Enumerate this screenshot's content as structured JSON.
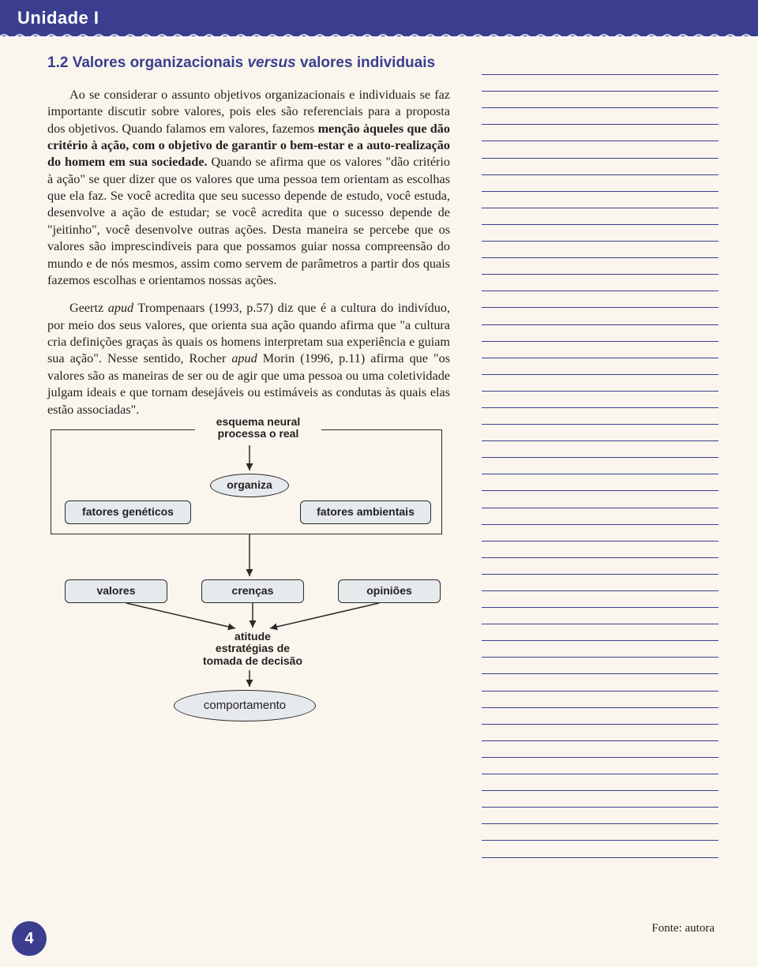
{
  "header": {
    "title": "Unidade I"
  },
  "heading": {
    "pre": "1.2 Valores organizacionais ",
    "versus": "versus",
    "post": " valores individuais"
  },
  "paragraphs": {
    "p1_a": "Ao se considerar o assunto objetivos organizacionais e individuais se faz importante discutir sobre valores, pois eles são referenciais para a proposta dos objetivos. Quando falamos em valores, fazemos ",
    "p1_bold": "menção àqueles que dão critério à ação, com o objetivo de garantir o bem-estar e a auto-realização do homem em sua sociedade.",
    "p1_b": " Quando se afirma que os valores \"dão critério à ação\" se quer dizer que os valores que uma pessoa tem orientam as escolhas que ela faz. Se você acredita que seu sucesso depende de estudo, você estuda, desenvolve a ação de estudar; se você acredita que o sucesso depende de \"jeitinho\", você desenvolve outras ações. Desta maneira se percebe que os valores são imprescindíveis para que possamos guiar nossa compreensão do mundo e de nós mesmos, assim como servem de parâmetros a partir dos quais fazemos escolhas e orientamos nossas ações.",
    "p2_a": "Geertz ",
    "p2_apud1": "apud",
    "p2_b": " Trompenaars (1993, p.57) diz que é a cultura do indivíduo, por meio dos seus valores, que orienta sua ação quando afirma que \"a cultura cria definições graças às quais os homens interpretam sua experiência e guiam sua ação\". Nesse sentido, Rocher ",
    "p2_apud2": "apud",
    "p2_c": " Morin (1996, p.11) afirma que \"os valores são as maneiras de ser ou de agir que uma pessoa ou uma coletividade julgam ideais e que tornam desejáveis ou estimáveis as condutas às quais elas estão associadas\"."
  },
  "diagram": {
    "caption": "esquema neural\nprocessa o real",
    "nodes": {
      "organiza": "organiza",
      "fat_gen": "fatores genéticos",
      "fat_amb": "fatores ambientais",
      "valores": "valores",
      "crencas": "crenças",
      "opinioes": "opiniões",
      "atitude": "atitude\nestratégias de\ntomada de decisão",
      "comportamento": "comportamento"
    },
    "arrow_color": "#2a2a2a"
  },
  "notes": {
    "line_count": 48,
    "line_color": "#3b3e8f"
  },
  "source": "Fonte: autora",
  "page_number": "4",
  "colors": {
    "brand": "#3b3e8f",
    "paper": "#faf6ed",
    "node_fill": "#e6eaed",
    "text": "#231f20"
  }
}
